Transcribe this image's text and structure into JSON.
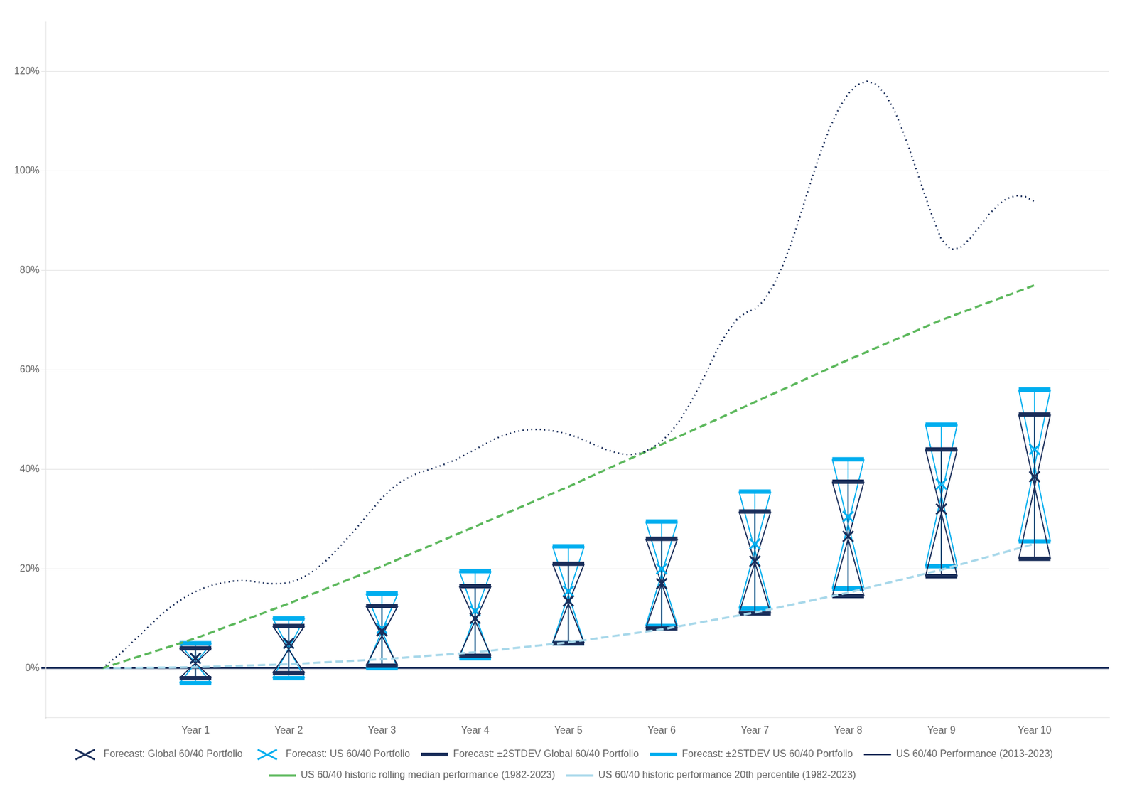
{
  "chart_data": {
    "type": "line",
    "xlim": [
      -0.6,
      10.8
    ],
    "xticks": [
      {
        "value": 1,
        "label": "Year 1"
      },
      {
        "value": 2,
        "label": "Year 2"
      },
      {
        "value": 3,
        "label": "Year 3"
      },
      {
        "value": 4,
        "label": "Year 4"
      },
      {
        "value": 5,
        "label": "Year 5"
      },
      {
        "value": 6,
        "label": "Year 6"
      },
      {
        "value": 7,
        "label": "Year 7"
      },
      {
        "value": 8,
        "label": "Year 8"
      },
      {
        "value": 9,
        "label": "Year 9"
      },
      {
        "value": 10,
        "label": "Year 10"
      }
    ],
    "ylim": [
      -0.1,
      1.3
    ],
    "yticks": [
      {
        "value": 0.0,
        "label": "0%"
      },
      {
        "value": 0.2,
        "label": "20%"
      },
      {
        "value": 0.4,
        "label": "40%"
      },
      {
        "value": 0.6,
        "label": "60%"
      },
      {
        "value": 0.8,
        "label": "80%"
      },
      {
        "value": 1.0,
        "label": "100%"
      },
      {
        "value": 1.2,
        "label": "120%"
      }
    ],
    "grid": "y",
    "legend": "bottom",
    "series": [
      {
        "name": "Forecast: Global 60/40 Portfolio",
        "type": "scatter",
        "marker": "x",
        "color": "#1a2e5a",
        "x": [
          1,
          2,
          3,
          4,
          5,
          6,
          7,
          8,
          9,
          10
        ],
        "values": [
          0.02,
          0.05,
          0.075,
          0.1,
          0.135,
          0.17,
          0.215,
          0.265,
          0.32,
          0.385
        ]
      },
      {
        "name": "Forecast: ±2STDEV Global 60/40 Portfolio",
        "type": "range",
        "color": "#1a2e5a",
        "x": [
          1,
          2,
          3,
          4,
          5,
          6,
          7,
          8,
          9,
          10
        ],
        "upper": [
          0.04,
          0.085,
          0.125,
          0.165,
          0.21,
          0.26,
          0.315,
          0.375,
          0.44,
          0.51
        ],
        "lower": [
          -0.02,
          -0.01,
          0.005,
          0.025,
          0.05,
          0.08,
          0.11,
          0.145,
          0.185,
          0.22
        ]
      },
      {
        "name": "Forecast: US 60/40 Portfolio",
        "type": "scatter",
        "marker": "x",
        "color": "#00aeef",
        "x": [
          1,
          2,
          3,
          4,
          5,
          6,
          7,
          8,
          9,
          10
        ],
        "values": [
          0.02,
          0.05,
          0.08,
          0.115,
          0.155,
          0.2,
          0.25,
          0.305,
          0.37,
          0.44
        ]
      },
      {
        "name": "Forecast: ±2STDEV US 60/40 Portfolio",
        "type": "range",
        "color": "#00aeef",
        "x": [
          1,
          2,
          3,
          4,
          5,
          6,
          7,
          8,
          9,
          10
        ],
        "upper": [
          0.05,
          0.1,
          0.15,
          0.195,
          0.245,
          0.295,
          0.355,
          0.42,
          0.49,
          0.56
        ],
        "lower": [
          -0.03,
          -0.02,
          0.0,
          0.02,
          0.05,
          0.085,
          0.12,
          0.16,
          0.205,
          0.255
        ]
      },
      {
        "name": "US 60/40 Performance (2013-2023)",
        "type": "line",
        "line_style": "dotted",
        "color": "#1a2e5a",
        "x": [
          0,
          0.1,
          0.2,
          0.3,
          0.4,
          0.5,
          0.6,
          0.7,
          0.8,
          0.9,
          1.0,
          1.1,
          1.2,
          1.3,
          1.4,
          1.5,
          1.6,
          1.7,
          1.8,
          1.9,
          2.0,
          2.1,
          2.2,
          2.3,
          2.4,
          2.5,
          2.6,
          2.7,
          2.8,
          2.9,
          3.0,
          3.1,
          3.2,
          3.3,
          3.4,
          3.5,
          3.6,
          3.7,
          3.8,
          3.9,
          4.0,
          4.1,
          4.2,
          4.3,
          4.4,
          4.5,
          4.6,
          4.7,
          4.8,
          4.9,
          5.0,
          5.1,
          5.2,
          5.3,
          5.4,
          5.5,
          5.6,
          5.7,
          5.8,
          5.9,
          6.0,
          6.1,
          6.2,
          6.3,
          6.4,
          6.5,
          6.6,
          6.7,
          6.8,
          6.9,
          7.0,
          7.1,
          7.2,
          7.3,
          7.4,
          7.5,
          7.6,
          7.7,
          7.8,
          7.9,
          8.0,
          8.1,
          8.2,
          8.3,
          8.4,
          8.5,
          8.6,
          8.7,
          8.8,
          8.9,
          9.0,
          9.1,
          9.2,
          9.3,
          9.4,
          9.5,
          9.6,
          9.7,
          9.8,
          9.9,
          10.0
        ],
        "values": [
          0,
          0.015,
          0.03,
          0.048,
          0.066,
          0.084,
          0.102,
          0.118,
          0.132,
          0.144,
          0.154,
          0.162,
          0.168,
          0.172,
          0.175,
          0.176,
          0.175,
          0.172,
          0.17,
          0.17,
          0.172,
          0.178,
          0.187,
          0.2,
          0.216,
          0.235,
          0.255,
          0.276,
          0.298,
          0.32,
          0.342,
          0.36,
          0.374,
          0.385,
          0.393,
          0.399,
          0.405,
          0.412,
          0.42,
          0.43,
          0.44,
          0.45,
          0.46,
          0.468,
          0.474,
          0.478,
          0.48,
          0.48,
          0.478,
          0.475,
          0.47,
          0.464,
          0.456,
          0.448,
          0.44,
          0.434,
          0.43,
          0.43,
          0.434,
          0.443,
          0.456,
          0.475,
          0.5,
          0.53,
          0.565,
          0.603,
          0.642,
          0.675,
          0.7,
          0.715,
          0.722,
          0.74,
          0.77,
          0.81,
          0.86,
          0.918,
          0.978,
          1.035,
          1.085,
          1.125,
          1.155,
          1.173,
          1.18,
          1.174,
          1.154,
          1.12,
          1.074,
          1.02,
          0.964,
          0.91,
          0.862,
          0.842,
          0.845,
          0.862,
          0.885,
          0.91,
          0.93,
          0.944,
          0.95,
          0.948,
          0.938
        ]
      },
      {
        "name": "US 60/40 historic rolling median performance (1982-2023)",
        "type": "line",
        "line_style": "dashed",
        "color": "#5cb85c",
        "x": [
          0,
          1,
          2,
          3,
          4,
          5,
          6,
          7,
          8,
          9,
          10
        ],
        "values": [
          0,
          0.06,
          0.13,
          0.205,
          0.285,
          0.365,
          0.45,
          0.535,
          0.62,
          0.7,
          0.77
        ]
      },
      {
        "name": "US 60/40 historic performance 20th percentile (1982-2023)",
        "type": "line",
        "line_style": "dashed",
        "color": "#a8d8ea",
        "x": [
          0,
          1,
          2,
          3,
          4,
          5,
          6,
          7,
          8,
          9,
          10
        ],
        "values": [
          0,
          0.002,
          0.008,
          0.018,
          0.032,
          0.052,
          0.078,
          0.112,
          0.152,
          0.198,
          0.25
        ]
      }
    ]
  }
}
